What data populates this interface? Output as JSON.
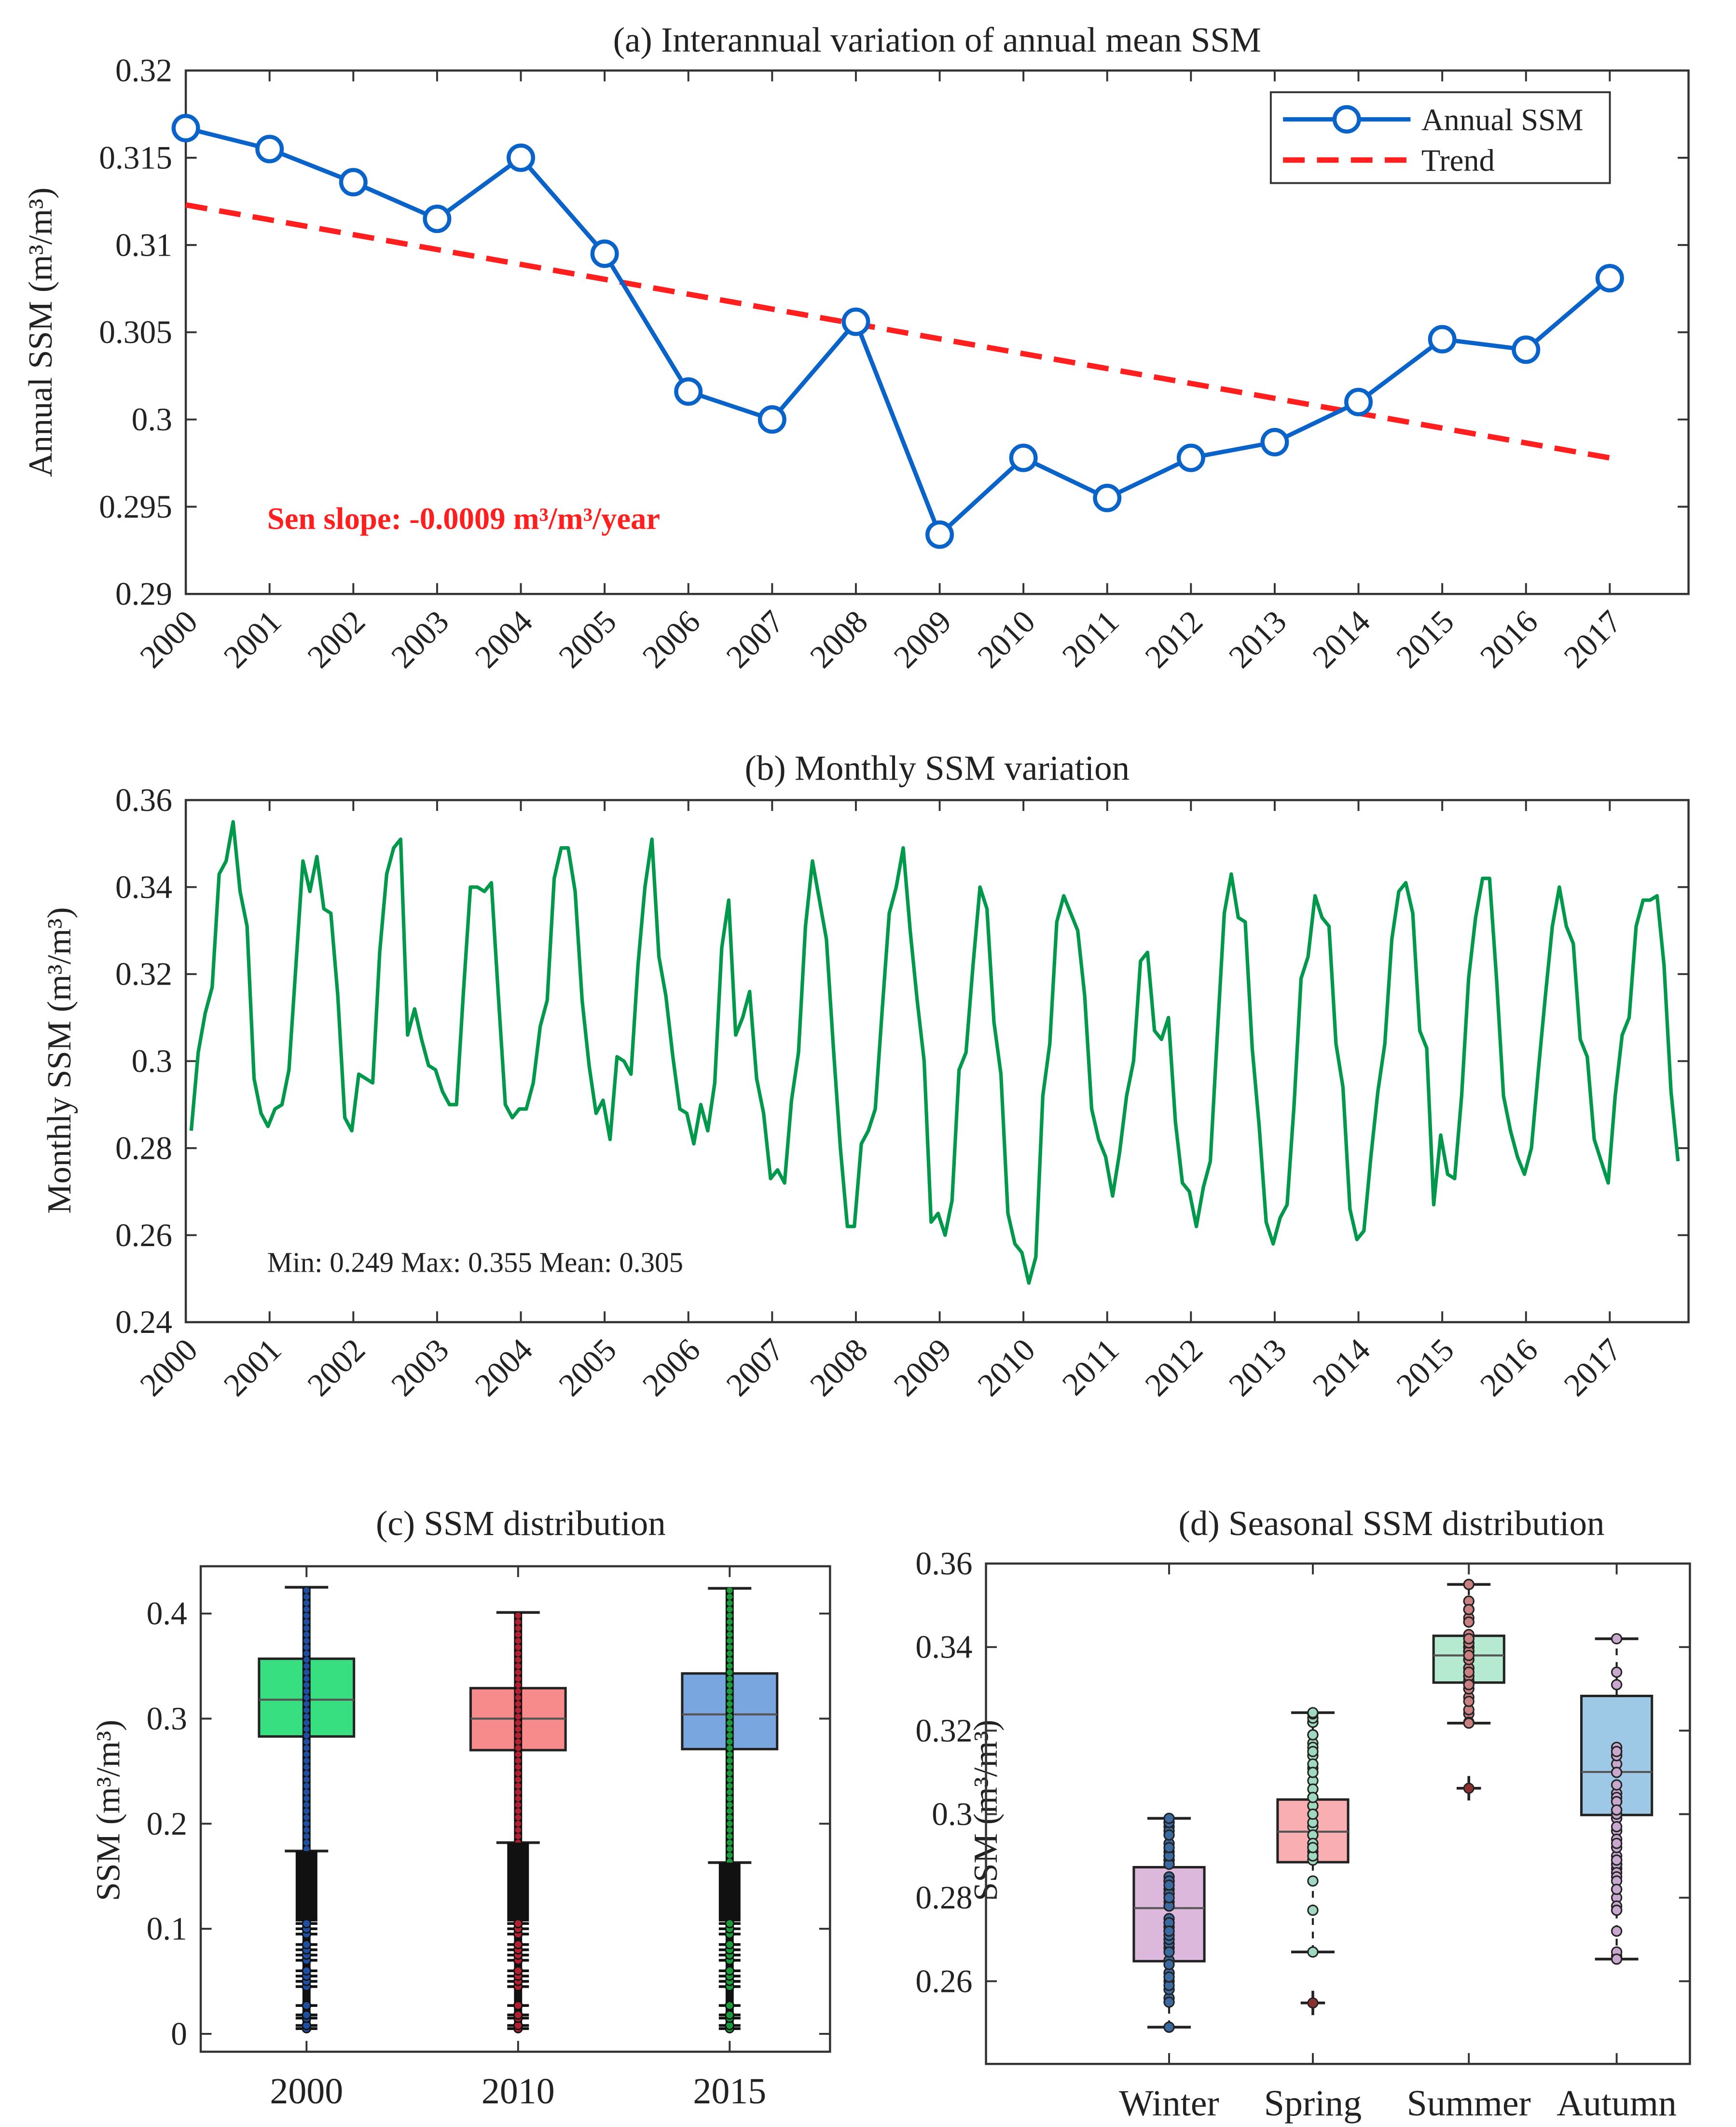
{
  "chart_data": [
    {
      "type": "line",
      "title": "(a) Interannual variation of annual mean SSM",
      "xlabel": "",
      "ylabel": "Annual SSM (m³/m³)",
      "ylim": [
        0.29,
        0.32
      ],
      "yticks": [
        "0.29",
        "0.295",
        "0.3",
        "0.305",
        "0.31",
        "0.315",
        "0.32"
      ],
      "x": [
        2000,
        2001,
        2002,
        2003,
        2004,
        2005,
        2006,
        2007,
        2008,
        2009,
        2010,
        2011,
        2012,
        2013,
        2014,
        2015,
        2016,
        2017
      ],
      "xtick_labels": [
        "2000",
        "2001",
        "2002",
        "2003",
        "2004",
        "2005",
        "2006",
        "2007",
        "2008",
        "2009",
        "2010",
        "2011",
        "2012",
        "2013",
        "2014",
        "2015",
        "2016",
        "2017"
      ],
      "series": [
        {
          "name": "Annual SSM",
          "color": "#0a63c9",
          "marker": "circle",
          "values": [
            0.3167,
            0.3155,
            0.3136,
            0.3115,
            0.315,
            0.3095,
            0.3016,
            0.3,
            0.3056,
            0.2934,
            0.2978,
            0.2955,
            0.2978,
            0.2987,
            0.301,
            0.3046,
            0.304,
            0.3081
          ]
        },
        {
          "name": "Trend",
          "color": "#ff1f1f",
          "style": "dashed",
          "values_endpoints": [
            0.3123,
            0.2978
          ]
        }
      ],
      "legend_position": "top-right",
      "annotation": "Sen slope: -0.0009 m³/m³/year",
      "annotation_color": "#ff1f1f"
    },
    {
      "type": "line",
      "title": "(b) Monthly SSM variation",
      "ylabel": "Monthly SSM (m³/m³)",
      "ylim": [
        0.24,
        0.36
      ],
      "yticks": [
        "0.24",
        "0.26",
        "0.28",
        "0.3",
        "0.32",
        "0.34",
        "0.36"
      ],
      "xtick_labels": [
        "2000",
        "2001",
        "2002",
        "2003",
        "2004",
        "2005",
        "2006",
        "2007",
        "2008",
        "2009",
        "2010",
        "2011",
        "2012",
        "2013",
        "2014",
        "2015",
        "2016",
        "2017"
      ],
      "start_year": 2000,
      "color": "#00994c",
      "annotation": "Min: 0.249  Max: 0.355  Mean: 0.305",
      "values": [
        0.284,
        0.302,
        0.311,
        0.317,
        0.343,
        0.346,
        0.355,
        0.339,
        0.331,
        0.296,
        0.288,
        0.285,
        0.289,
        0.29,
        0.298,
        0.322,
        0.346,
        0.339,
        0.347,
        0.335,
        0.334,
        0.315,
        0.287,
        0.284,
        0.297,
        0.296,
        0.295,
        0.325,
        0.343,
        0.349,
        0.351,
        0.306,
        0.312,
        0.305,
        0.299,
        0.298,
        0.293,
        0.29,
        0.29,
        0.316,
        0.34,
        0.34,
        0.339,
        0.341,
        0.315,
        0.29,
        0.287,
        0.289,
        0.289,
        0.295,
        0.308,
        0.314,
        0.342,
        0.349,
        0.349,
        0.339,
        0.314,
        0.299,
        0.288,
        0.291,
        0.282,
        0.301,
        0.3,
        0.297,
        0.322,
        0.34,
        0.351,
        0.324,
        0.315,
        0.301,
        0.289,
        0.288,
        0.281,
        0.29,
        0.284,
        0.295,
        0.326,
        0.337,
        0.306,
        0.31,
        0.316,
        0.296,
        0.288,
        0.273,
        0.275,
        0.272,
        0.291,
        0.302,
        0.331,
        0.346,
        0.337,
        0.328,
        0.303,
        0.28,
        0.262,
        0.262,
        0.281,
        0.284,
        0.289,
        0.312,
        0.334,
        0.34,
        0.349,
        0.33,
        0.314,
        0.3,
        0.263,
        0.265,
        0.26,
        0.268,
        0.298,
        0.302,
        0.322,
        0.34,
        0.335,
        0.309,
        0.297,
        0.265,
        0.258,
        0.256,
        0.249,
        0.255,
        0.292,
        0.304,
        0.332,
        0.338,
        0.334,
        0.33,
        0.315,
        0.289,
        0.282,
        0.278,
        0.269,
        0.279,
        0.292,
        0.3,
        0.323,
        0.325,
        0.307,
        0.305,
        0.31,
        0.286,
        0.272,
        0.27,
        0.262,
        0.271,
        0.277,
        0.306,
        0.334,
        0.343,
        0.333,
        0.332,
        0.303,
        0.285,
        0.263,
        0.258,
        0.264,
        0.267,
        0.29,
        0.319,
        0.324,
        0.338,
        0.333,
        0.331,
        0.304,
        0.294,
        0.266,
        0.259,
        0.261,
        0.278,
        0.293,
        0.304,
        0.328,
        0.339,
        0.341,
        0.334,
        0.307,
        0.303,
        0.267,
        0.283,
        0.274,
        0.273,
        0.292,
        0.319,
        0.333,
        0.342,
        0.342,
        0.319,
        0.292,
        0.284,
        0.278,
        0.274,
        0.28,
        0.298,
        0.315,
        0.331,
        0.34,
        0.331,
        0.327,
        0.305,
        0.301,
        0.282,
        0.277,
        0.272,
        0.292,
        0.306,
        0.31,
        0.331,
        0.337,
        0.337,
        0.338,
        0.322,
        0.293,
        0.277
      ]
    },
    {
      "type": "box",
      "title": "(c) SSM distribution",
      "ylabel": "SSM (m³/m³)",
      "ylim": [
        -0.017,
        0.445
      ],
      "yticks": [
        "0",
        "0.1",
        "0.2",
        "0.3",
        "0.4"
      ],
      "ytick_values": [
        0,
        0.1,
        0.2,
        0.3,
        0.4
      ],
      "categories": [
        "2000",
        "2010",
        "2015"
      ],
      "boxes": [
        {
          "q1": 0.283,
          "median": 0.318,
          "q3": 0.357,
          "whisker_low": 0.174,
          "whisker_high": 0.425,
          "color": "#38df80",
          "point_color": "#1f4fa0"
        },
        {
          "q1": 0.27,
          "median": 0.3,
          "q3": 0.329,
          "whisker_low": 0.182,
          "whisker_high": 0.401,
          "color": "#f78a8a",
          "point_color": "#b02030"
        },
        {
          "q1": 0.271,
          "median": 0.304,
          "q3": 0.343,
          "whisker_low": 0.163,
          "whisker_high": 0.424,
          "color": "#7aa6e0",
          "point_color": "#1a9a3a"
        }
      ],
      "outliers": [
        0.005,
        0.008,
        0.015,
        0.018,
        0.027,
        0.045,
        0.05,
        0.055,
        0.06,
        0.07,
        0.075,
        0.08,
        0.085,
        0.095,
        0.1,
        0.105
      ]
    },
    {
      "type": "box",
      "title": "(d) Seasonal SSM distribution",
      "ylabel": "SSM (m³/m³)",
      "ylim": [
        0.2402,
        0.36
      ],
      "yticks": [
        "0.26",
        "0.28",
        "0.3",
        "0.32",
        "0.34",
        "0.36"
      ],
      "ytick_values": [
        0.26,
        0.28,
        0.3,
        0.32,
        0.34,
        0.36
      ],
      "categories": [
        "Winter",
        "Spring",
        "Summer",
        "Autumn"
      ],
      "boxes": [
        {
          "q1": 0.2648,
          "median": 0.2775,
          "q3": 0.2873,
          "whisker_low": 0.249,
          "whisker_high": 0.299,
          "color": "#dcb9dc",
          "point_color": "#3a6aa0",
          "outliers": []
        },
        {
          "q1": 0.2885,
          "median": 0.2958,
          "q3": 0.3035,
          "whisker_low": 0.267,
          "whisker_high": 0.3243,
          "color": "#f9aeb1",
          "point_color": "#9fd9c0",
          "outliers": [
            0.2548
          ]
        },
        {
          "q1": 0.3315,
          "median": 0.338,
          "q3": 0.3427,
          "whisker_low": 0.3218,
          "whisker_high": 0.355,
          "color": "#b5ead0",
          "point_color": "#c98080",
          "outliers": [
            0.3062
          ]
        },
        {
          "q1": 0.2998,
          "median": 0.3101,
          "q3": 0.3283,
          "whisker_low": 0.2653,
          "whisker_high": 0.342,
          "color": "#9dc9e6",
          "point_color": "#c8a8cf",
          "outliers": []
        }
      ]
    }
  ]
}
